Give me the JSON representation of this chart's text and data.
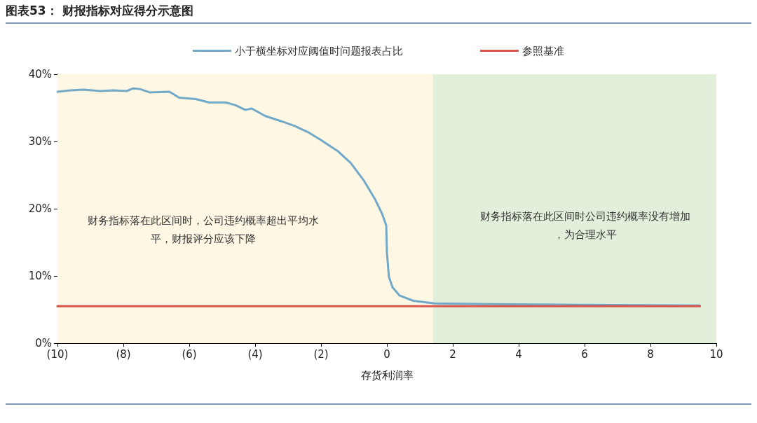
{
  "chart_data": {
    "type": "line",
    "title": "图表53： 财报指标对应得分示意图",
    "xlabel": "存货利润率",
    "legend": "top",
    "series": [
      {
        "name": "小于横坐标对应阈值时问题报表占比",
        "color": "#72a9c9",
        "x": [
          -10,
          -9.6,
          -9.2,
          -8.7,
          -8.3,
          -7.9,
          -7.7,
          -7.5,
          -7.2,
          -6.6,
          -6.3,
          -5.8,
          -5.4,
          -4.9,
          -4.6,
          -4.3,
          -4.1,
          -3.7,
          -3.2,
          -2.8,
          -2.4,
          -2.0,
          -1.5,
          -1.1,
          -0.7,
          -0.36,
          -0.15,
          -0.02,
          0.0,
          0.06,
          0.17,
          0.38,
          0.8,
          1.45,
          3.15,
          6.0,
          9.5
        ],
        "values": [
          37.4,
          37.6,
          37.7,
          37.5,
          37.6,
          37.5,
          37.9,
          37.8,
          37.3,
          37.4,
          36.5,
          36.3,
          35.8,
          35.8,
          35.4,
          34.7,
          34.9,
          33.8,
          33.0,
          32.3,
          31.4,
          30.2,
          28.6,
          26.8,
          24.2,
          21.4,
          19.3,
          17.5,
          13.5,
          9.9,
          8.3,
          7.1,
          6.3,
          5.9,
          5.8,
          5.7,
          5.6
        ]
      },
      {
        "name": "参照基准",
        "color": "#d9544a",
        "x": [
          -10,
          9.5
        ],
        "values": [
          5.5,
          5.5
        ]
      }
    ],
    "bands": [
      {
        "axis": "x",
        "from": -10,
        "to": 1.4,
        "label": "财务指标落在此区间时，公司违约概率超出平均水平，财报评分应该下降",
        "color": "#fef7e4"
      },
      {
        "axis": "x",
        "from": 1.4,
        "to": 10,
        "label": "财务指标落在此区间时公司违约概率没有增加，为合理水平",
        "color": "#e2efda"
      }
    ],
    "xlim": [
      -10,
      10
    ],
    "xticks": [
      {
        "value": -10,
        "label": "(10)"
      },
      {
        "value": -8,
        "label": "(8)"
      },
      {
        "value": -6,
        "label": "(6)"
      },
      {
        "value": -4,
        "label": "(4)"
      },
      {
        "value": -2,
        "label": "(2)"
      },
      0,
      2,
      4,
      6,
      8,
      10
    ],
    "ylim": [
      0,
      40
    ],
    "yticks": [
      {
        "value": 0,
        "label": "0%"
      },
      {
        "value": 10,
        "label": "10%"
      },
      {
        "value": 20,
        "label": "20%"
      },
      {
        "value": 30,
        "label": "30%"
      },
      {
        "value": 40,
        "label": "40%"
      }
    ],
    "grid": false,
    "marker": "none",
    "line_style": "solid"
  }
}
